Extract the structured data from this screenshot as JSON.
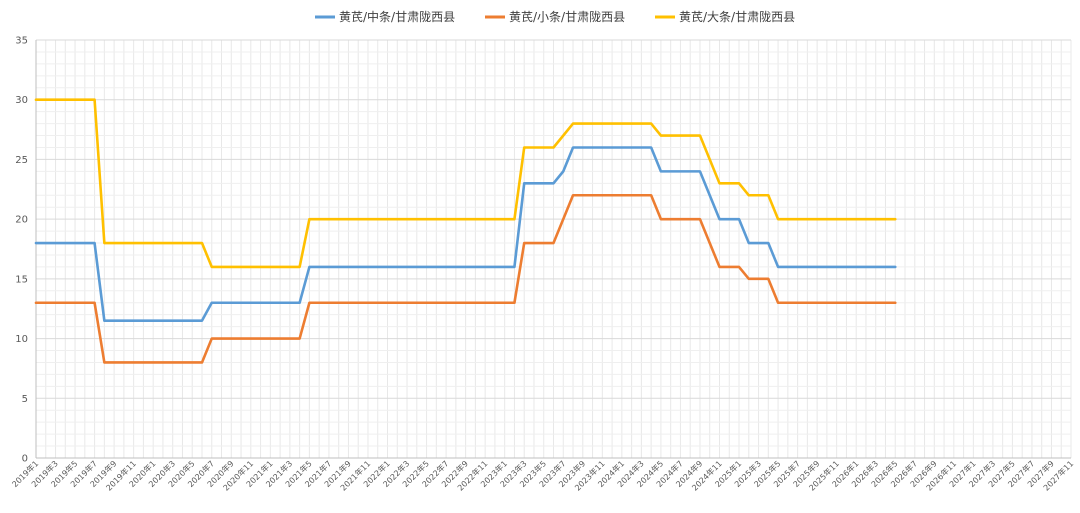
{
  "chart_data": {
    "type": "line",
    "x": [
      "2019年1",
      "2019年3",
      "2019年5",
      "2019年7",
      "2019年9",
      "2019年11",
      "2020年1",
      "2020年3",
      "2020年5",
      "2020年7",
      "2020年9",
      "2020年11",
      "2021年1",
      "2021年3",
      "2021年5",
      "2021年7",
      "2021年9",
      "2021年11",
      "2022年1",
      "2022年3",
      "2022年5",
      "2022年7",
      "2022年9",
      "2022年11",
      "2023年1",
      "2023年3",
      "2023年5",
      "2023年7",
      "2023年9",
      "2023年11",
      "2024年1",
      "2024年3",
      "2024年5",
      "2024年7",
      "2024年9",
      "2024年11",
      "2025年1",
      "2025年3",
      "2025年5",
      "2025年7",
      "2025年9",
      "2025年11",
      "2026年1",
      "2026年3",
      "2026年5",
      "2026年7",
      "2026年9",
      "2026年11",
      "2027年1",
      "2027年3",
      "2027年5",
      "2027年7",
      "2027年9",
      "2027年11"
    ],
    "xlim": [
      "2019年1",
      "2027年11"
    ],
    "ylim": [
      0,
      35
    ],
    "yticks": [
      0,
      5,
      10,
      15,
      20,
      25,
      30,
      35
    ],
    "grid": true,
    "legend": "top-center",
    "series": [
      {
        "name": "黄芪/中条/甘肃陇西县",
        "color": "#5B9BD5",
        "points": [
          [
            "2019年1",
            18
          ],
          [
            "2019年7",
            18
          ],
          [
            "2019年8",
            11.5
          ],
          [
            "2020年6",
            11.5
          ],
          [
            "2020年7",
            13
          ],
          [
            "2021年4",
            13
          ],
          [
            "2021年5",
            16
          ],
          [
            "2023年2",
            16
          ],
          [
            "2023年3",
            23
          ],
          [
            "2023年6",
            23
          ],
          [
            "2023年7",
            24
          ],
          [
            "2023年8",
            26
          ],
          [
            "2024年4",
            26
          ],
          [
            "2024年5",
            24
          ],
          [
            "2024年9",
            24
          ],
          [
            "2024年11",
            20
          ],
          [
            "2025年1",
            20
          ],
          [
            "2025年2",
            18
          ],
          [
            "2025年4",
            18
          ],
          [
            "2025年5",
            16
          ],
          [
            "2026年5",
            16
          ]
        ]
      },
      {
        "name": "黄芪/小条/甘肃陇西县",
        "color": "#ED7D31",
        "points": [
          [
            "2019年1",
            13
          ],
          [
            "2019年7",
            13
          ],
          [
            "2019年8",
            8
          ],
          [
            "2020年6",
            8
          ],
          [
            "2020年7",
            10
          ],
          [
            "2021年4",
            10
          ],
          [
            "2021年5",
            13
          ],
          [
            "2023年2",
            13
          ],
          [
            "2023年3",
            18
          ],
          [
            "2023年6",
            18
          ],
          [
            "2023年8",
            22
          ],
          [
            "2024年4",
            22
          ],
          [
            "2024年5",
            20
          ],
          [
            "2024年9",
            20
          ],
          [
            "2024年11",
            16
          ],
          [
            "2025年1",
            16
          ],
          [
            "2025年2",
            15
          ],
          [
            "2025年4",
            15
          ],
          [
            "2025年5",
            13
          ],
          [
            "2026年5",
            13
          ]
        ]
      },
      {
        "name": "黄芪/大条/甘肃陇西县",
        "color": "#FFC000",
        "points": [
          [
            "2019年1",
            30
          ],
          [
            "2019年7",
            30
          ],
          [
            "2019年8",
            18
          ],
          [
            "2020年6",
            18
          ],
          [
            "2020年7",
            16
          ],
          [
            "2021年4",
            16
          ],
          [
            "2021年5",
            20
          ],
          [
            "2023年2",
            20
          ],
          [
            "2023年3",
            26
          ],
          [
            "2023年6",
            26
          ],
          [
            "2023年8",
            28
          ],
          [
            "2024年4",
            28
          ],
          [
            "2024年5",
            27
          ],
          [
            "2024年9",
            27
          ],
          [
            "2024年11",
            23
          ],
          [
            "2025年1",
            23
          ],
          [
            "2025年2",
            22
          ],
          [
            "2025年4",
            22
          ],
          [
            "2025年5",
            20
          ],
          [
            "2026年5",
            20
          ]
        ]
      }
    ]
  }
}
